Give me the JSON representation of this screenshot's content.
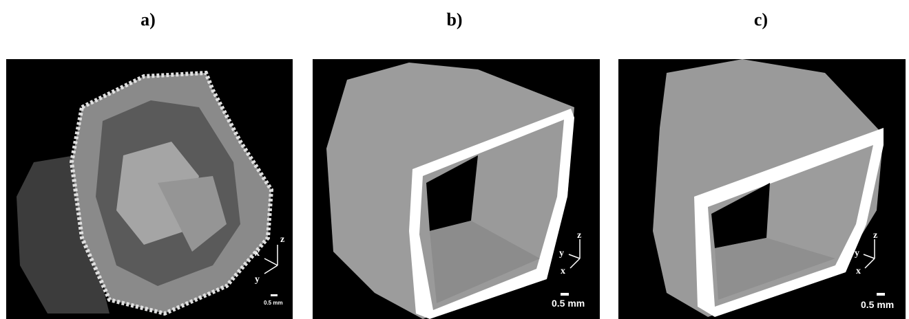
{
  "panels": [
    {
      "label": "a)",
      "axes": {
        "x": "x",
        "y": "y",
        "z": "z"
      },
      "scale": "0.5 mm"
    },
    {
      "label": "b)",
      "axes": {
        "x": "x",
        "y": "y",
        "z": "z"
      },
      "scale": "0.5 mm"
    },
    {
      "label": "c)",
      "axes": {
        "x": "x",
        "y": "y",
        "z": "z"
      },
      "scale": "0.5 mm"
    }
  ]
}
